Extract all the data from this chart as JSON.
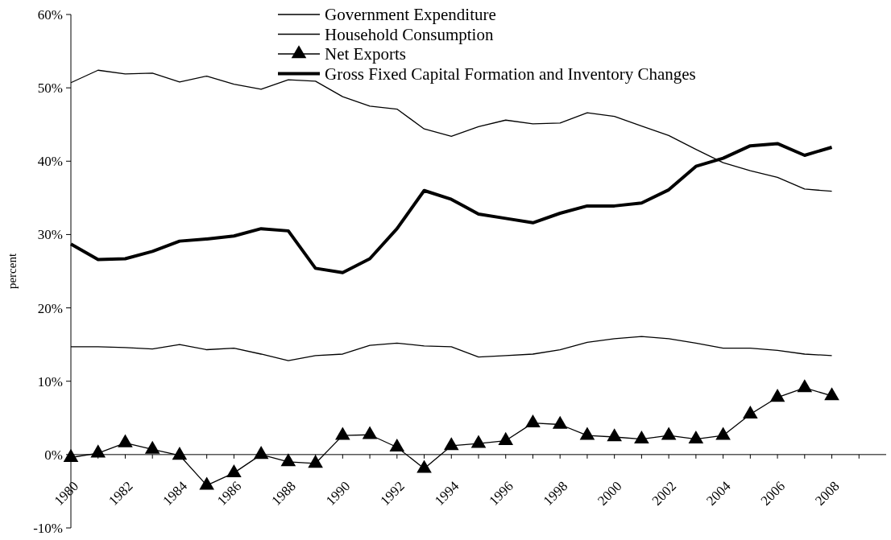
{
  "chart_data": {
    "type": "line",
    "ylabel": "percent",
    "legend": "top",
    "grid": false,
    "line_style": "solid",
    "x": [
      1980,
      1981,
      1982,
      1983,
      1984,
      1985,
      1986,
      1987,
      1988,
      1989,
      1990,
      1991,
      1992,
      1993,
      1994,
      1995,
      1996,
      1997,
      1998,
      1999,
      2000,
      2001,
      2002,
      2003,
      2004,
      2005,
      2006,
      2007,
      2008
    ],
    "xlim": [
      1980,
      2010
    ],
    "xticks": [
      1980,
      {
        "value": 1981,
        "label": null
      },
      1982,
      {
        "value": 1983,
        "label": null
      },
      1984,
      {
        "value": 1985,
        "label": null
      },
      1986,
      {
        "value": 1987,
        "label": null
      },
      1988,
      {
        "value": 1989,
        "label": null
      },
      1990,
      {
        "value": 1991,
        "label": null
      },
      1992,
      {
        "value": 1993,
        "label": null
      },
      1994,
      {
        "value": 1995,
        "label": null
      },
      1996,
      {
        "value": 1997,
        "label": null
      },
      1998,
      {
        "value": 1999,
        "label": null
      },
      2000,
      {
        "value": 2001,
        "label": null
      },
      2002,
      {
        "value": 2003,
        "label": null
      },
      2004,
      {
        "value": 2005,
        "label": null
      },
      2006,
      {
        "value": 2007,
        "label": null
      },
      2008,
      {
        "value": 2009,
        "label": null
      }
    ],
    "ylim": [
      -10,
      60
    ],
    "yticks": [
      {
        "value": -10,
        "label": "-10%"
      },
      {
        "value": 0,
        "label": "0%"
      },
      {
        "value": 10,
        "label": "10%"
      },
      {
        "value": 20,
        "label": "20%"
      },
      {
        "value": 30,
        "label": "30%"
      },
      {
        "value": 40,
        "label": "40%"
      },
      {
        "value": 50,
        "label": "50%"
      },
      {
        "value": 60,
        "label": "60%"
      }
    ],
    "series": [
      {
        "name": "Government Expenditure",
        "color": "#000000",
        "marker": "none",
        "values": [
          14.7,
          14.7,
          14.6,
          14.4,
          15.0,
          14.3,
          14.5,
          13.7,
          12.8,
          13.5,
          13.7,
          14.9,
          15.2,
          14.8,
          14.7,
          13.3,
          13.5,
          13.7,
          14.3,
          15.3,
          15.8,
          16.1,
          15.8,
          15.2,
          14.5,
          14.5,
          14.2,
          13.7,
          13.5
        ]
      },
      {
        "name": "Household Consumption",
        "color": "#000000",
        "marker": "none",
        "values": [
          50.7,
          52.4,
          51.9,
          52.0,
          50.8,
          51.6,
          50.5,
          49.8,
          51.1,
          50.9,
          48.8,
          47.5,
          47.1,
          44.4,
          43.4,
          44.7,
          45.6,
          45.1,
          45.2,
          46.6,
          46.1,
          44.8,
          43.5,
          41.6,
          39.8,
          38.7,
          37.8,
          36.2,
          35.9
        ]
      },
      {
        "name": "Net Exports",
        "color": "#000000",
        "marker": "triangle",
        "values": [
          -0.4,
          0.2,
          1.6,
          0.7,
          -0.1,
          -4.2,
          -2.5,
          0.0,
          -1.0,
          -1.2,
          2.6,
          2.7,
          1.0,
          -1.9,
          1.2,
          1.5,
          1.9,
          4.3,
          4.1,
          2.6,
          2.4,
          2.1,
          2.6,
          2.1,
          2.6,
          5.5,
          7.8,
          9.1,
          8.0
        ]
      },
      {
        "name": "Gross Fixed Capital Formation and Inventory Changes",
        "color": "#000000",
        "marker": "none",
        "values": [
          28.7,
          26.6,
          26.7,
          27.7,
          29.1,
          29.4,
          29.8,
          30.8,
          30.5,
          25.4,
          24.8,
          26.7,
          30.8,
          36.0,
          34.8,
          32.8,
          32.2,
          31.6,
          32.9,
          33.9,
          33.9,
          34.3,
          36.1,
          39.3,
          40.4,
          42.1,
          42.4,
          40.8,
          41.9
        ]
      }
    ]
  }
}
